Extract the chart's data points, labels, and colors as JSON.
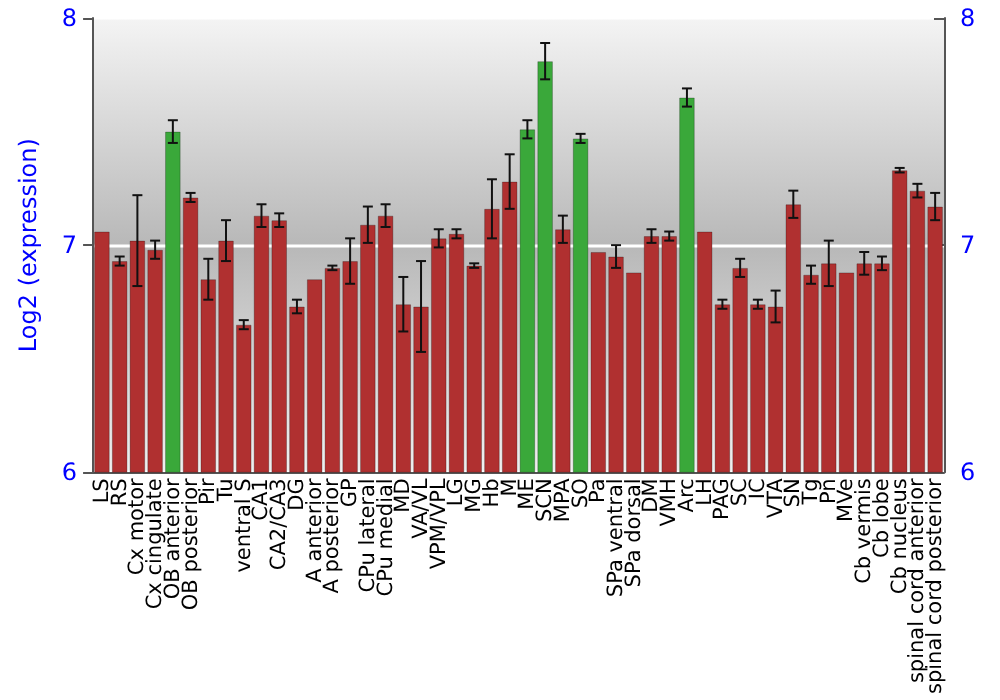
{
  "chart_data": {
    "type": "bar",
    "ylabel": "Log2 (expression)",
    "categories": [
      "LS",
      "RS",
      "Cx motor",
      "Cx cingulate",
      "OB anterior",
      "OB posterior",
      "Pir",
      "Tu",
      "ventral S",
      "CA1",
      "CA2/CA3",
      "DG",
      "A anterior",
      "A posterior",
      "GP",
      "CPu lateral",
      "CPu medial",
      "MD",
      "VA/VL",
      "VPM/VPL",
      "LG",
      "MG",
      "Hb",
      "M",
      "ME",
      "SCN",
      "MPA",
      "SO",
      "Pa",
      "SPa ventral",
      "SPa dorsal",
      "DM",
      "VMH",
      "Arc",
      "LH",
      "PAG",
      "SC",
      "IC",
      "VTA",
      "SN",
      "Tg",
      "Pn",
      "MVe",
      "Cb vermis",
      "Cb lobe",
      "Cb nucleus",
      "spinal cord anterior",
      "spinal cord posterior"
    ],
    "values": [
      7.06,
      6.93,
      7.02,
      6.98,
      7.5,
      7.21,
      6.85,
      7.02,
      6.65,
      7.13,
      7.11,
      6.73,
      6.85,
      6.9,
      6.93,
      7.09,
      7.13,
      6.74,
      6.73,
      7.03,
      7.05,
      6.91,
      7.16,
      7.28,
      7.51,
      7.81,
      7.07,
      7.47,
      6.97,
      6.95,
      6.88,
      7.04,
      7.04,
      7.65,
      7.06,
      6.74,
      6.9,
      6.74,
      6.73,
      7.18,
      6.87,
      6.92,
      6.88,
      6.92,
      6.92,
      7.33,
      7.24,
      7.17
    ],
    "errors": [
      null,
      0.02,
      0.2,
      0.04,
      0.05,
      0.02,
      0.09,
      0.09,
      0.02,
      0.05,
      0.03,
      0.03,
      null,
      0.01,
      0.1,
      0.08,
      0.05,
      0.12,
      0.2,
      0.04,
      0.02,
      0.01,
      0.13,
      0.12,
      0.04,
      0.08,
      0.06,
      0.02,
      null,
      0.05,
      null,
      0.03,
      0.02,
      0.04,
      null,
      0.02,
      0.04,
      0.02,
      0.07,
      0.06,
      0.04,
      0.1,
      null,
      0.05,
      0.03,
      0.01,
      0.03,
      0.06
    ],
    "colors": [
      "#b03030",
      "#b03030",
      "#b03030",
      "#b03030",
      "#3aa83a",
      "#b03030",
      "#b03030",
      "#b03030",
      "#b03030",
      "#b03030",
      "#b03030",
      "#b03030",
      "#b03030",
      "#b03030",
      "#b03030",
      "#b03030",
      "#b03030",
      "#b03030",
      "#b03030",
      "#b03030",
      "#b03030",
      "#b03030",
      "#b03030",
      "#b03030",
      "#3aa83a",
      "#3aa83a",
      "#b03030",
      "#3aa83a",
      "#b03030",
      "#b03030",
      "#b03030",
      "#b03030",
      "#b03030",
      "#3aa83a",
      "#b03030",
      "#b03030",
      "#b03030",
      "#b03030",
      "#b03030",
      "#b03030",
      "#b03030",
      "#b03030",
      "#b03030",
      "#b03030",
      "#b03030",
      "#b03030",
      "#b03030",
      "#b03030"
    ],
    "ylim": [
      6,
      8
    ],
    "yticks": [
      6,
      7,
      8
    ],
    "y2lim": [
      6,
      8
    ],
    "y2ticks": [
      6,
      7,
      8
    ],
    "grid": "y"
  }
}
